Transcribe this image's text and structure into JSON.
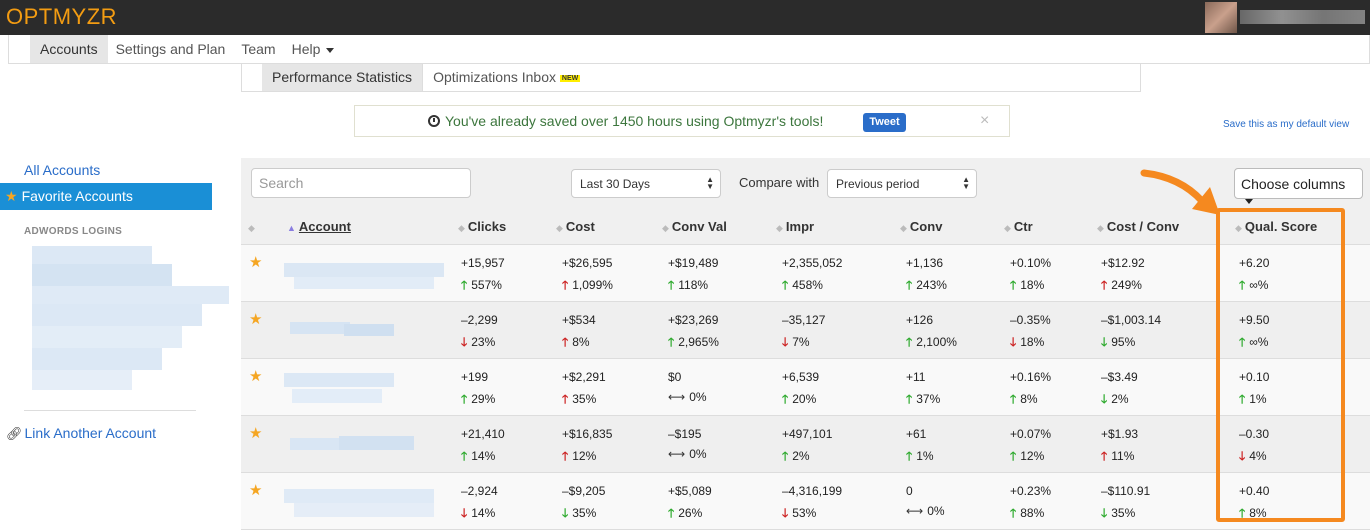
{
  "app": {
    "logo": "OPTMYZR"
  },
  "nav": [
    {
      "label": "Accounts",
      "active": true
    },
    {
      "label": "Settings and Plan"
    },
    {
      "label": "Team"
    },
    {
      "label": "Help"
    }
  ],
  "subtabs": [
    {
      "label": "Performance Statistics",
      "active": true
    },
    {
      "label": "Optimizations Inbox",
      "badge": "NEW"
    }
  ],
  "notice": {
    "text": "You've already saved over 1450 hours using Optmyzr's tools!",
    "tweet_label": "Tweet",
    "close": "×"
  },
  "default_view_link": "Save this as my default view",
  "sidebar": {
    "all_accounts": "All Accounts",
    "favorite_accounts": "Favorite Accounts",
    "logins_heading": "ADWORDS LOGINS",
    "link_account": "Link Another Account"
  },
  "toolbar": {
    "search_placeholder": "Search",
    "date_range": "Last 30 Days",
    "compare_label": "Compare with",
    "compare_value": "Previous period",
    "choose_columns": "Choose columns"
  },
  "columns": [
    "Account",
    "Clicks",
    "Cost",
    "Conv Val",
    "Impr",
    "Conv",
    "Ctr",
    "Cost / Conv",
    "Qual. Score"
  ],
  "rows": [
    {
      "cells": [
        {
          "v": "+15,957",
          "p": "557%",
          "d": "up"
        },
        {
          "v": "+$26,595",
          "p": "1,099%",
          "d": "up-red"
        },
        {
          "v": "+$19,489",
          "p": "118%",
          "d": "up"
        },
        {
          "v": "+2,355,052",
          "p": "458%",
          "d": "up"
        },
        {
          "v": "+1,136",
          "p": "243%",
          "d": "up"
        },
        {
          "v": "+0.10%",
          "p": "18%",
          "d": "up"
        },
        {
          "v": "+$12.92",
          "p": "249%",
          "d": "up-red"
        },
        {
          "v": "+6.20",
          "p": "∞%",
          "d": "up"
        }
      ]
    },
    {
      "cells": [
        {
          "v": "–2,299",
          "p": "23%",
          "d": "down-red"
        },
        {
          "v": "+$534",
          "p": "8%",
          "d": "up-red"
        },
        {
          "v": "+$23,269",
          "p": "2,965%",
          "d": "up"
        },
        {
          "v": "–35,127",
          "p": "7%",
          "d": "down-red"
        },
        {
          "v": "+126",
          "p": "2,100%",
          "d": "up"
        },
        {
          "v": "–0.35%",
          "p": "18%",
          "d": "down-red"
        },
        {
          "v": "–$1,003.14",
          "p": "95%",
          "d": "down-green"
        },
        {
          "v": "+9.50",
          "p": "∞%",
          "d": "up"
        }
      ]
    },
    {
      "cells": [
        {
          "v": "+199",
          "p": "29%",
          "d": "up"
        },
        {
          "v": "+$2,291",
          "p": "35%",
          "d": "up-red"
        },
        {
          "v": "$0",
          "p": "0%",
          "d": "flat"
        },
        {
          "v": "+6,539",
          "p": "20%",
          "d": "up"
        },
        {
          "v": "+11",
          "p": "37%",
          "d": "up"
        },
        {
          "v": "+0.16%",
          "p": "8%",
          "d": "up"
        },
        {
          "v": "–$3.49",
          "p": "2%",
          "d": "down-green"
        },
        {
          "v": "+0.10",
          "p": "1%",
          "d": "up"
        }
      ]
    },
    {
      "cells": [
        {
          "v": "+21,410",
          "p": "14%",
          "d": "up"
        },
        {
          "v": "+$16,835",
          "p": "12%",
          "d": "up-red"
        },
        {
          "v": "–$195",
          "p": "0%",
          "d": "flat"
        },
        {
          "v": "+497,101",
          "p": "2%",
          "d": "up"
        },
        {
          "v": "+61",
          "p": "1%",
          "d": "up"
        },
        {
          "v": "+0.07%",
          "p": "12%",
          "d": "up"
        },
        {
          "v": "+$1.93",
          "p": "11%",
          "d": "up-red"
        },
        {
          "v": "–0.30",
          "p": "4%",
          "d": "down-red"
        }
      ]
    },
    {
      "cells": [
        {
          "v": "–2,924",
          "p": "14%",
          "d": "down-red"
        },
        {
          "v": "–$9,205",
          "p": "35%",
          "d": "down-green"
        },
        {
          "v": "+$5,089",
          "p": "26%",
          "d": "up"
        },
        {
          "v": "–4,316,199",
          "p": "53%",
          "d": "down-red"
        },
        {
          "v": "0",
          "p": "0%",
          "d": "flat"
        },
        {
          "v": "+0.23%",
          "p": "88%",
          "d": "up"
        },
        {
          "v": "–$110.91",
          "p": "35%",
          "d": "down-green"
        },
        {
          "v": "+0.40",
          "p": "8%",
          "d": "up"
        }
      ]
    }
  ],
  "icons": {
    "star": "star-icon",
    "clock": "clock-icon",
    "link": "link-icon",
    "arrow_up": "arrow-up-icon",
    "arrow_down": "arrow-down-icon",
    "flat": "left-right-arrow-icon"
  },
  "colors": {
    "logo": "#f39c12",
    "favorite_bg": "#1a8fd6",
    "highlight": "#f5891f",
    "up_good": "#2eaa2e",
    "bad": "#cc2222"
  }
}
